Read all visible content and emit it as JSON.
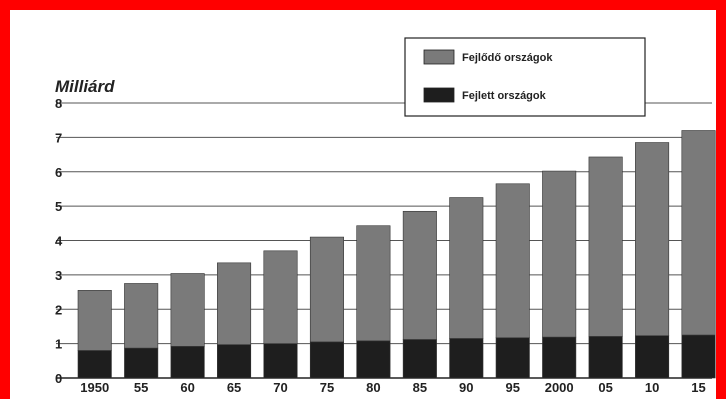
{
  "chart_data": {
    "type": "bar",
    "stacked": true,
    "title": "",
    "ylabel": "Milliárd",
    "xlabel": "",
    "ylim": [
      0,
      8
    ],
    "yticks": [
      "0",
      "1",
      "2",
      "3",
      "4",
      "5",
      "6",
      "7",
      "8"
    ],
    "grid": "horizontal",
    "legend_position": "top-right",
    "categories": [
      "1950",
      "55",
      "60",
      "65",
      "70",
      "75",
      "80",
      "85",
      "90",
      "95",
      "2000",
      "05",
      "10",
      "15"
    ],
    "series": [
      {
        "name": "Fejlett országok",
        "color": "#1e1e1e",
        "values": [
          0.8,
          0.87,
          0.92,
          0.97,
          1.0,
          1.05,
          1.08,
          1.12,
          1.15,
          1.17,
          1.19,
          1.21,
          1.23,
          1.25
        ]
      },
      {
        "name": "Fejlődő országok",
        "color": "#7a7a7a",
        "values": [
          1.75,
          1.88,
          2.12,
          2.38,
          2.7,
          3.05,
          3.35,
          3.73,
          4.1,
          4.48,
          4.83,
          5.22,
          5.62,
          5.95
        ]
      }
    ]
  }
}
